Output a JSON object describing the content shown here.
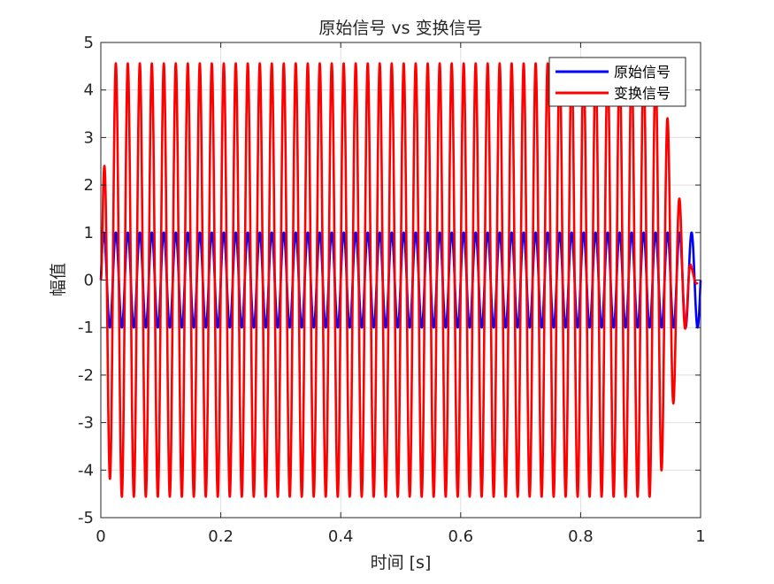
{
  "chart_data": {
    "type": "line",
    "title": "原始信号 vs 变换信号",
    "xlabel": "时间 [s]",
    "ylabel": "幅值",
    "xlim": [
      0,
      1
    ],
    "ylim": [
      -5,
      5
    ],
    "xticks": [
      0,
      0.2,
      0.4,
      0.6,
      0.8,
      1
    ],
    "xtick_labels": [
      "0",
      "0.2",
      "0.4",
      "0.6",
      "0.8",
      "1"
    ],
    "yticks": [
      -5,
      -4,
      -3,
      -2,
      -1,
      0,
      1,
      2,
      3,
      4,
      5
    ],
    "ytick_labels": [
      "-5",
      "-4",
      "-3",
      "-2",
      "-1",
      "0",
      "1",
      "2",
      "3",
      "4",
      "5"
    ],
    "grid": true,
    "legend_position": "top-right",
    "series": [
      {
        "name": "原始信号",
        "color": "#0000ff",
        "function": "sine",
        "frequency_hz": 50,
        "amplitude": 1,
        "x_range": [
          0,
          1
        ]
      },
      {
        "name": "变换信号",
        "color": "#ff0000",
        "function": "sine",
        "frequency_hz": 50,
        "amplitude": 4.56,
        "x_range": [
          0,
          0.995
        ],
        "envelope_x": [
          0,
          0.004,
          0.012,
          0.02,
          0.03,
          0.92,
          0.93,
          0.95,
          0.96,
          0.975,
          0.985,
          0.995
        ],
        "envelope_y": [
          0,
          2.05,
          3.95,
          4.56,
          4.56,
          4.56,
          4.3,
          3.1,
          2.05,
          1.0,
          0.25,
          0.05
        ]
      }
    ]
  }
}
